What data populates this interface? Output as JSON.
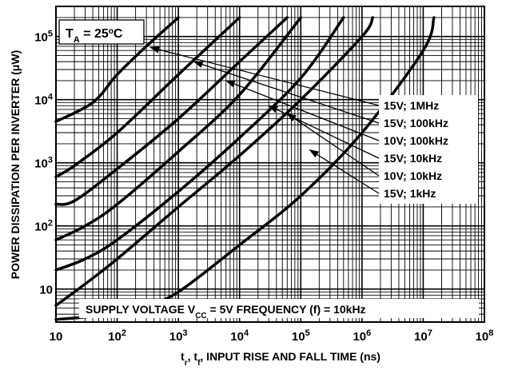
{
  "chart_data": {
    "type": "line",
    "xscale": "log",
    "yscale": "log",
    "xlim": [
      10,
      100000000
    ],
    "ylim": [
      3,
      300000
    ],
    "grid": true,
    "xlabel": {
      "base": "t",
      "sub1": "r",
      "sep": ", t",
      "sub2": "f",
      "rest": ", INPUT RISE AND FALL TIME (ns)"
    },
    "ylabel": "POWER DISSIPATION PER INVERTER (μW)",
    "ambient": {
      "pre": "T",
      "sub": "A",
      "mid": " = 25",
      "sup": "o",
      "post": "C"
    },
    "supply_note": {
      "pre": "SUPPLY VOLTAGE V",
      "sub": "CC",
      "post": " = 5V FREQUENCY (f) = 10kHz"
    },
    "x_ticks": [
      {
        "value": 10,
        "base": "10",
        "exp": ""
      },
      {
        "value": 100,
        "base": "10",
        "exp": "2"
      },
      {
        "value": 1000,
        "base": "10",
        "exp": "3"
      },
      {
        "value": 10000,
        "base": "10",
        "exp": "4"
      },
      {
        "value": 100000,
        "base": "10",
        "exp": "5"
      },
      {
        "value": 1000000,
        "base": "10",
        "exp": "6"
      },
      {
        "value": 10000000,
        "base": "10",
        "exp": "7"
      },
      {
        "value": 100000000,
        "base": "10",
        "exp": "8"
      }
    ],
    "y_ticks": [
      {
        "value": 10,
        "base": "10",
        "exp": ""
      },
      {
        "value": 100,
        "base": "10",
        "exp": "2"
      },
      {
        "value": 1000,
        "base": "10",
        "exp": "3"
      },
      {
        "value": 10000,
        "base": "10",
        "exp": "4"
      },
      {
        "value": 100000,
        "base": "10",
        "exp": "5"
      }
    ],
    "series": [
      {
        "name": "15V; 1MHz",
        "x": [
          10,
          40,
          100,
          300,
          1000
        ],
        "y": [
          4500,
          9000,
          25000,
          70000,
          200000
        ]
      },
      {
        "name": "15V; 100kHz",
        "x": [
          10,
          20,
          100,
          1000,
          10000
        ],
        "y": [
          600,
          900,
          3000,
          25000,
          200000
        ]
      },
      {
        "name": "10V; 100kHz",
        "x": [
          10,
          20,
          100,
          1000,
          10000,
          60000
        ],
        "y": [
          220,
          250,
          800,
          5000,
          40000,
          200000
        ]
      },
      {
        "name": "15V; 10kHz",
        "x": [
          10,
          30,
          100,
          1000,
          10000,
          100000
        ],
        "y": [
          60,
          100,
          220,
          1500,
          12000,
          200000
        ]
      },
      {
        "name": "10V; 10kHz",
        "x": [
          10,
          30,
          100,
          1000,
          10000,
          100000,
          500000
        ],
        "y": [
          20,
          30,
          60,
          350,
          2500,
          22000,
          200000
        ]
      },
      {
        "name": "15V; 1kHz",
        "x": [
          10,
          30,
          100,
          1000,
          10000,
          100000,
          1000000,
          1500000
        ],
        "y": [
          5.5,
          12,
          30,
          200,
          1300,
          10000,
          100000,
          200000
        ]
      },
      {
        "name": "SUPPLY VOLTAGE VCC = 5V FREQUENCY (f) = 10kHz",
        "x": [
          10,
          30,
          100,
          300,
          1000,
          10000,
          100000,
          1000000,
          10000000,
          15000000
        ],
        "y": [
          3.3,
          3.6,
          4.2,
          5.5,
          9,
          50,
          300,
          3000,
          60000,
          200000
        ]
      }
    ],
    "annotations": [
      {
        "label": "15V; 1MHz",
        "series": 0,
        "point": [
          350,
          67000
        ]
      },
      {
        "label": "15V; 100kHz",
        "series": 1,
        "point": [
          1800,
          40000
        ]
      },
      {
        "label": "10V; 100kHz",
        "series": 2,
        "point": [
          6000,
          20000
        ]
      },
      {
        "label": "15V; 10kHz",
        "series": 3,
        "point": [
          30000,
          8000
        ]
      },
      {
        "label": "10V; 10kHz",
        "series": 4,
        "point": [
          60000,
          6000
        ]
      },
      {
        "label": "15V; 1kHz",
        "series": 5,
        "point": [
          140000,
          1600
        ]
      }
    ]
  }
}
